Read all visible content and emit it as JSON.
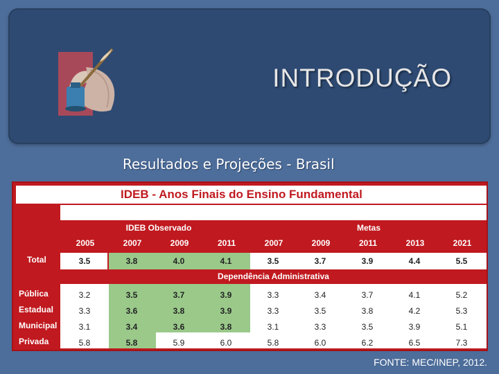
{
  "header": {
    "title": "INTRODUÇÃO"
  },
  "subtitle": "Resultados e Projeções - Brasil",
  "table": {
    "title": "IDEB - Anos Finais do Ensino Fundamental",
    "group_observed": "IDEB Observado",
    "group_targets": "Metas",
    "years_observed": [
      "2005",
      "2007",
      "2009",
      "2011"
    ],
    "years_targets": [
      "2007",
      "2009",
      "2011",
      "2013",
      "2021"
    ],
    "total_label": "Total",
    "total_values": [
      "3.5",
      "3.8",
      "4.0",
      "4.1",
      "3.5",
      "3.7",
      "3.9",
      "4.4",
      "5.5"
    ],
    "section_label": "Dependência Administrativa",
    "rows": [
      {
        "label": "Pública",
        "values": [
          "3.2",
          "3.5",
          "3.7",
          "3.9",
          "3.3",
          "3.4",
          "3.7",
          "4.1",
          "5.2"
        ]
      },
      {
        "label": "Estadual",
        "values": [
          "3.3",
          "3.6",
          "3.8",
          "3.9",
          "3.3",
          "3.5",
          "3.8",
          "4.2",
          "5.3"
        ]
      },
      {
        "label": "Municipal",
        "values": [
          "3.1",
          "3.4",
          "3.6",
          "3.8",
          "3.1",
          "3.3",
          "3.5",
          "3.9",
          "5.1"
        ]
      },
      {
        "label": "Privada",
        "values": [
          "5.8",
          "5.8",
          "5.9",
          "6.0",
          "5.8",
          "6.0",
          "6.2",
          "6.5",
          "7.3"
        ]
      }
    ]
  },
  "footer": {
    "source": "FONTE: MEC/INEP, 2012."
  },
  "colors": {
    "background": "#4d6d9a",
    "panel": "#2e4a72",
    "table_red": "#c0191f",
    "highlight_green": "#9ac98a"
  }
}
